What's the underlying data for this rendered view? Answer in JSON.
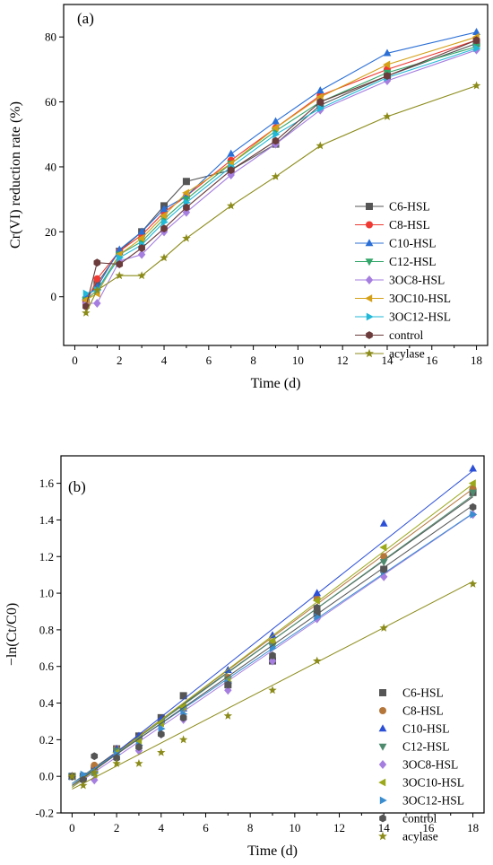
{
  "chart_data": [
    {
      "panel": "(a)",
      "type": "line",
      "xlabel": "Time (d)",
      "ylabel": "Cr(VI) reduction rate (%)",
      "xlim": [
        -0.5,
        18.5
      ],
      "ylim": [
        -15,
        90
      ],
      "xticks": [
        0,
        2,
        4,
        6,
        8,
        10,
        12,
        14,
        16,
        18
      ],
      "yticks": [
        0,
        20,
        40,
        60,
        80
      ],
      "legend_position": "right",
      "x": [
        0.5,
        1,
        2,
        3,
        4,
        5,
        7,
        9,
        11,
        14,
        18
      ],
      "series": [
        {
          "name": "C6-HSL",
          "color": "#555555",
          "marker": "square",
          "values": [
            -1,
            4,
            14,
            20,
            28,
            35.5,
            39,
            47,
            59,
            68,
            78
          ]
        },
        {
          "name": "C8-HSL",
          "color": "#ee3a33",
          "marker": "circle",
          "values": [
            -2,
            5.5,
            14,
            19,
            26,
            31,
            42,
            52,
            62,
            70,
            79
          ]
        },
        {
          "name": "C10-HSL",
          "color": "#2b6fd6",
          "marker": "triangle-up",
          "values": [
            0,
            3,
            14.5,
            20,
            27,
            31,
            44,
            54,
            63.5,
            75,
            81.5
          ]
        },
        {
          "name": "C12-HSL",
          "color": "#33a66a",
          "marker": "triangle-down",
          "values": [
            -1,
            2,
            13,
            17,
            24,
            30,
            41,
            51,
            60,
            69,
            77
          ]
        },
        {
          "name": "3OC8-HSL",
          "color": "#a57ee0",
          "marker": "diamond",
          "values": [
            -2,
            -2,
            11,
            13,
            20,
            26,
            37.5,
            47,
            57.5,
            66.5,
            76
          ]
        },
        {
          "name": "3OC10-HSL",
          "color": "#d4a017",
          "marker": "triangle-left",
          "values": [
            -1,
            1,
            13,
            18,
            25,
            32,
            41,
            52,
            61.5,
            71.5,
            80
          ]
        },
        {
          "name": "3OC12-HSL",
          "color": "#22b8d8",
          "marker": "triangle-right",
          "values": [
            1,
            2,
            12,
            16,
            23,
            29,
            40,
            50,
            58,
            67.5,
            76.5
          ]
        },
        {
          "name": "control",
          "color": "#6b3b3b",
          "marker": "hexagon",
          "values": [
            -3,
            10.5,
            10,
            15,
            21,
            27.5,
            39,
            48,
            60,
            68,
            79
          ]
        },
        {
          "name": "acylase",
          "color": "#8b8b1a",
          "marker": "star",
          "values": [
            -5,
            2,
            6.5,
            6.5,
            12,
            18,
            28,
            37,
            46.5,
            55.5,
            65
          ]
        }
      ]
    },
    {
      "panel": "(b)",
      "type": "scatter",
      "xlabel": "Time (d)",
      "ylabel": "−ln(Ct/C0)",
      "xlim": [
        -0.5,
        18.5
      ],
      "ylim": [
        -0.2,
        1.75
      ],
      "xticks": [
        0,
        2,
        4,
        6,
        8,
        10,
        12,
        14,
        16,
        18
      ],
      "yticks": [
        -0.2,
        0.0,
        0.2,
        0.4,
        0.6,
        0.8,
        1.0,
        1.2,
        1.4,
        1.6
      ],
      "legend_position": "right",
      "fit_lines": true,
      "x": [
        0,
        0.5,
        1,
        2,
        3,
        4,
        5,
        7,
        9,
        11,
        14,
        18
      ],
      "series": [
        {
          "name": "C6-HSL",
          "color": "#555555",
          "marker": "square",
          "values": [
            0,
            0.0,
            0.04,
            0.15,
            0.22,
            0.32,
            0.44,
            0.5,
            0.63,
            0.89,
            1.13,
            1.55
          ],
          "fit": [
            -0.04,
            0.087
          ]
        },
        {
          "name": "C8-HSL",
          "color": "#b5763a",
          "marker": "circle",
          "values": [
            0,
            -0.01,
            0.06,
            0.15,
            0.21,
            0.3,
            0.37,
            0.54,
            0.73,
            0.97,
            1.2,
            1.57
          ],
          "fit": [
            -0.05,
            0.09
          ]
        },
        {
          "name": "C10-HSL",
          "color": "#2b4fd6",
          "marker": "triangle-up",
          "values": [
            0,
            0.0,
            0.03,
            0.15,
            0.22,
            0.31,
            0.37,
            0.58,
            0.77,
            1.0,
            1.38,
            1.68
          ],
          "fit": [
            -0.06,
            0.096
          ]
        },
        {
          "name": "C12-HSL",
          "color": "#4e8a6e",
          "marker": "triangle-down",
          "values": [
            0,
            -0.01,
            0.02,
            0.14,
            0.19,
            0.28,
            0.36,
            0.53,
            0.71,
            0.92,
            1.17,
            1.55
          ],
          "fit": [
            -0.05,
            0.088
          ]
        },
        {
          "name": "3OC8-HSL",
          "color": "#a57ee0",
          "marker": "diamond",
          "values": [
            0,
            -0.02,
            -0.02,
            0.12,
            0.14,
            0.23,
            0.31,
            0.47,
            0.63,
            0.86,
            1.09,
            1.43
          ],
          "fit": [
            -0.06,
            0.083
          ]
        },
        {
          "name": "3OC10-HSL",
          "color": "#9aa81a",
          "marker": "triangle-left",
          "values": [
            0,
            -0.01,
            0.01,
            0.13,
            0.19,
            0.29,
            0.38,
            0.53,
            0.74,
            0.96,
            1.25,
            1.6
          ],
          "fit": [
            -0.06,
            0.092
          ]
        },
        {
          "name": "3OC12-HSL",
          "color": "#3a8ecf",
          "marker": "triangle-right",
          "values": [
            0,
            0.01,
            0.02,
            0.12,
            0.17,
            0.26,
            0.34,
            0.51,
            0.7,
            0.87,
            1.12,
            1.43
          ],
          "fit": [
            -0.04,
            0.082
          ]
        },
        {
          "name": "control",
          "color": "#555555",
          "marker": "hexagon",
          "values": [
            0,
            -0.02,
            0.11,
            0.1,
            0.16,
            0.23,
            0.32,
            0.5,
            0.66,
            0.92,
            1.13,
            1.47
          ],
          "fit": [
            -0.05,
            0.085
          ]
        },
        {
          "name": "acylase",
          "color": "#8b8b1a",
          "marker": "star",
          "values": [
            0,
            -0.05,
            0.02,
            0.07,
            0.07,
            0.13,
            0.2,
            0.33,
            0.47,
            0.63,
            0.81,
            1.05
          ],
          "fit": [
            -0.07,
            0.063
          ]
        }
      ]
    }
  ]
}
